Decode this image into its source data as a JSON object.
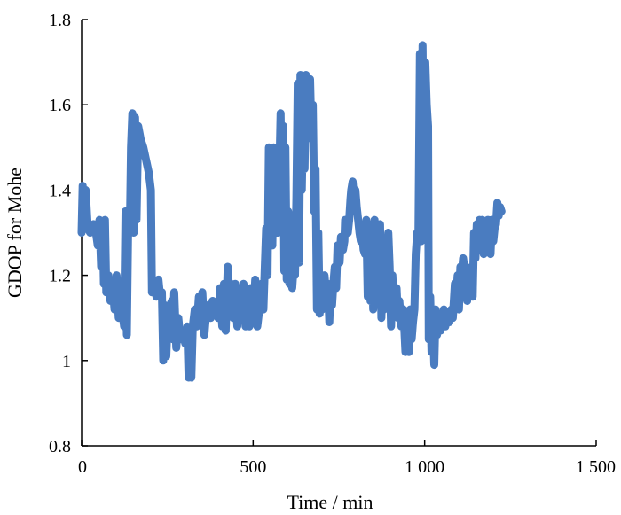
{
  "chart_data": {
    "type": "line",
    "title": "",
    "xlabel": "Time / min",
    "ylabel": "GDOP for Mohe",
    "xlim": [
      0,
      1500
    ],
    "ylim": [
      0.8,
      1.8
    ],
    "x_ticks": [
      0,
      500,
      1000,
      1500
    ],
    "x_tick_labels": [
      "0",
      "500",
      "1 000",
      "1 500"
    ],
    "y_ticks": [
      0.8,
      1.0,
      1.2,
      1.4,
      1.6,
      1.8
    ],
    "y_tick_labels": [
      "0.8",
      "1",
      "1.2",
      "1.4",
      "1.6",
      "1.8"
    ],
    "grid": false,
    "legend": "none",
    "line_color": "#4a7cc0",
    "series": [
      {
        "name": "",
        "points": [
          [
            0,
            1.3
          ],
          [
            3,
            1.41
          ],
          [
            8,
            1.32
          ],
          [
            12,
            1.4
          ],
          [
            18,
            1.31
          ],
          [
            25,
            1.3
          ],
          [
            35,
            1.32
          ],
          [
            42,
            1.3
          ],
          [
            47,
            1.27
          ],
          [
            52,
            1.33
          ],
          [
            57,
            1.22
          ],
          [
            62,
            1.3
          ],
          [
            65,
            1.18
          ],
          [
            68,
            1.33
          ],
          [
            72,
            1.16
          ],
          [
            78,
            1.2
          ],
          [
            84,
            1.14
          ],
          [
            90,
            1.18
          ],
          [
            96,
            1.12
          ],
          [
            102,
            1.2
          ],
          [
            108,
            1.1
          ],
          [
            112,
            1.18
          ],
          [
            118,
            1.12
          ],
          [
            124,
            1.08
          ],
          [
            128,
            1.35
          ],
          [
            132,
            1.06
          ],
          [
            136,
            1.34
          ],
          [
            141,
            1.32
          ],
          [
            144,
            1.5
          ],
          [
            148,
            1.58
          ],
          [
            152,
            1.3
          ],
          [
            156,
            1.57
          ],
          [
            160,
            1.33
          ],
          [
            165,
            1.55
          ],
          [
            172,
            1.52
          ],
          [
            180,
            1.5
          ],
          [
            188,
            1.47
          ],
          [
            196,
            1.44
          ],
          [
            202,
            1.4
          ],
          [
            205,
            1.16
          ],
          [
            212,
            1.18
          ],
          [
            218,
            1.15
          ],
          [
            224,
            1.19
          ],
          [
            229,
            1.15
          ],
          [
            234,
            1.16
          ],
          [
            238,
            1.0
          ],
          [
            242,
            1.13
          ],
          [
            247,
            1.01
          ],
          [
            252,
            1.12
          ],
          [
            258,
            1.13
          ],
          [
            263,
            1.14
          ],
          [
            266,
            1.05
          ],
          [
            270,
            1.16
          ],
          [
            276,
            1.03
          ],
          [
            282,
            1.1
          ],
          [
            288,
            1.05
          ],
          [
            296,
            1.07
          ],
          [
            302,
            1.04
          ],
          [
            308,
            1.08
          ],
          [
            312,
            0.96
          ],
          [
            316,
            1.06
          ],
          [
            320,
            0.96
          ],
          [
            324,
            1.08
          ],
          [
            330,
            1.12
          ],
          [
            336,
            1.08
          ],
          [
            342,
            1.15
          ],
          [
            348,
            1.09
          ],
          [
            352,
            1.16
          ],
          [
            358,
            1.06
          ],
          [
            364,
            1.12
          ],
          [
            370,
            1.13
          ],
          [
            376,
            1.1
          ],
          [
            382,
            1.14
          ],
          [
            390,
            1.12
          ],
          [
            398,
            1.1
          ],
          [
            404,
            1.17
          ],
          [
            410,
            1.08
          ],
          [
            415,
            1.18
          ],
          [
            420,
            1.07
          ],
          [
            426,
            1.22
          ],
          [
            431,
            1.15
          ],
          [
            436,
            1.18
          ],
          [
            442,
            1.1
          ],
          [
            448,
            1.18
          ],
          [
            454,
            1.08
          ],
          [
            460,
            1.17
          ],
          [
            466,
            1.12
          ],
          [
            472,
            1.18
          ],
          [
            478,
            1.08
          ],
          [
            483,
            1.16
          ],
          [
            489,
            1.08
          ],
          [
            494,
            1.17
          ],
          [
            500,
            1.09
          ],
          [
            506,
            1.19
          ],
          [
            512,
            1.08
          ],
          [
            518,
            1.12
          ],
          [
            524,
            1.18
          ],
          [
            530,
            1.12
          ],
          [
            534,
            1.22
          ],
          [
            538,
            1.31
          ],
          [
            542,
            1.2
          ],
          [
            546,
            1.5
          ],
          [
            550,
            1.3
          ],
          [
            553,
            1.48
          ],
          [
            556,
            1.27
          ],
          [
            560,
            1.5
          ],
          [
            564,
            1.35
          ],
          [
            568,
            1.45
          ],
          [
            572,
            1.3
          ],
          [
            576,
            1.42
          ],
          [
            580,
            1.58
          ],
          [
            584,
            1.33
          ],
          [
            588,
            1.55
          ],
          [
            591,
            1.21
          ],
          [
            594,
            1.5
          ],
          [
            598,
            1.19
          ],
          [
            602,
            1.35
          ],
          [
            606,
            1.18
          ],
          [
            610,
            1.25
          ],
          [
            614,
            1.17
          ],
          [
            618,
            1.22
          ],
          [
            622,
            1.2
          ],
          [
            626,
            1.38
          ],
          [
            630,
            1.65
          ],
          [
            634,
            1.23
          ],
          [
            638,
            1.67
          ],
          [
            642,
            1.4
          ],
          [
            646,
            1.6
          ],
          [
            650,
            1.45
          ],
          [
            654,
            1.67
          ],
          [
            658,
            1.58
          ],
          [
            662,
            1.58
          ],
          [
            666,
            1.66
          ],
          [
            670,
            1.52
          ],
          [
            674,
            1.6
          ],
          [
            678,
            1.35
          ],
          [
            682,
            1.45
          ],
          [
            686,
            1.12
          ],
          [
            690,
            1.3
          ],
          [
            694,
            1.11
          ],
          [
            698,
            1.18
          ],
          [
            702,
            1.12
          ],
          [
            708,
            1.2
          ],
          [
            714,
            1.14
          ],
          [
            718,
            1.18
          ],
          [
            722,
            1.09
          ],
          [
            726,
            1.17
          ],
          [
            730,
            1.13
          ],
          [
            734,
            1.18
          ],
          [
            738,
            1.22
          ],
          [
            742,
            1.17
          ],
          [
            746,
            1.27
          ],
          [
            752,
            1.23
          ],
          [
            756,
            1.29
          ],
          [
            762,
            1.26
          ],
          [
            766,
            1.28
          ],
          [
            768,
            1.33
          ],
          [
            772,
            1.32
          ],
          [
            776,
            1.3
          ],
          [
            780,
            1.33
          ],
          [
            784,
            1.38
          ],
          [
            786,
            1.4
          ],
          [
            790,
            1.42
          ],
          [
            794,
            1.38
          ],
          [
            798,
            1.4
          ],
          [
            802,
            1.36
          ],
          [
            806,
            1.33
          ],
          [
            810,
            1.3
          ],
          [
            814,
            1.28
          ],
          [
            818,
            1.3
          ],
          [
            822,
            1.26
          ],
          [
            826,
            1.25
          ],
          [
            830,
            1.33
          ],
          [
            834,
            1.15
          ],
          [
            838,
            1.32
          ],
          [
            842,
            1.14
          ],
          [
            846,
            1.29
          ],
          [
            850,
            1.12
          ],
          [
            854,
            1.33
          ],
          [
            858,
            1.18
          ],
          [
            862,
            1.28
          ],
          [
            866,
            1.16
          ],
          [
            870,
            1.32
          ],
          [
            874,
            1.1
          ],
          [
            878,
            1.27
          ],
          [
            882,
            1.12
          ],
          [
            886,
            1.25
          ],
          [
            890,
            1.25
          ],
          [
            894,
            1.3
          ],
          [
            898,
            1.22
          ],
          [
            902,
            1.08
          ],
          [
            906,
            1.2
          ],
          [
            910,
            1.12
          ],
          [
            914,
            1.11
          ],
          [
            918,
            1.17
          ],
          [
            922,
            1.1
          ],
          [
            926,
            1.14
          ],
          [
            932,
            1.08
          ],
          [
            938,
            1.12
          ],
          [
            944,
            1.02
          ],
          [
            950,
            1.1
          ],
          [
            954,
            1.02
          ],
          [
            958,
            1.12
          ],
          [
            962,
            1.05
          ],
          [
            966,
            1.09
          ],
          [
            970,
            1.12
          ],
          [
            974,
            1.25
          ],
          [
            978,
            1.3
          ],
          [
            982,
            1.3
          ],
          [
            986,
            1.72
          ],
          [
            990,
            1.28
          ],
          [
            994,
            1.74
          ],
          [
            998,
            1.4
          ],
          [
            1002,
            1.7
          ],
          [
            1006,
            1.6
          ],
          [
            1010,
            1.55
          ],
          [
            1012,
            1.05
          ],
          [
            1016,
            1.15
          ],
          [
            1020,
            1.02
          ],
          [
            1024,
            1.1
          ],
          [
            1028,
            0.99
          ],
          [
            1032,
            1.12
          ],
          [
            1036,
            1.06
          ],
          [
            1040,
            1.1
          ],
          [
            1046,
            1.07
          ],
          [
            1050,
            1.09
          ],
          [
            1056,
            1.12
          ],
          [
            1060,
            1.08
          ],
          [
            1066,
            1.1
          ],
          [
            1072,
            1.09
          ],
          [
            1078,
            1.12
          ],
          [
            1082,
            1.1
          ],
          [
            1088,
            1.18
          ],
          [
            1092,
            1.14
          ],
          [
            1096,
            1.2
          ],
          [
            1100,
            1.12
          ],
          [
            1104,
            1.22
          ],
          [
            1108,
            1.2
          ],
          [
            1112,
            1.24
          ],
          [
            1118,
            1.2
          ],
          [
            1124,
            1.14
          ],
          [
            1128,
            1.2
          ],
          [
            1132,
            1.18
          ],
          [
            1136,
            1.22
          ],
          [
            1140,
            1.15
          ],
          [
            1144,
            1.3
          ],
          [
            1148,
            1.24
          ],
          [
            1152,
            1.32
          ],
          [
            1156,
            1.26
          ],
          [
            1160,
            1.33
          ],
          [
            1164,
            1.28
          ],
          [
            1168,
            1.33
          ],
          [
            1172,
            1.25
          ],
          [
            1176,
            1.32
          ],
          [
            1180,
            1.3
          ],
          [
            1184,
            1.33
          ],
          [
            1188,
            1.32
          ],
          [
            1192,
            1.25
          ],
          [
            1196,
            1.33
          ],
          [
            1200,
            1.28
          ],
          [
            1204,
            1.31
          ],
          [
            1208,
            1.32
          ],
          [
            1212,
            1.37
          ],
          [
            1216,
            1.34
          ],
          [
            1220,
            1.36
          ],
          [
            1224,
            1.35
          ]
        ]
      }
    ]
  }
}
